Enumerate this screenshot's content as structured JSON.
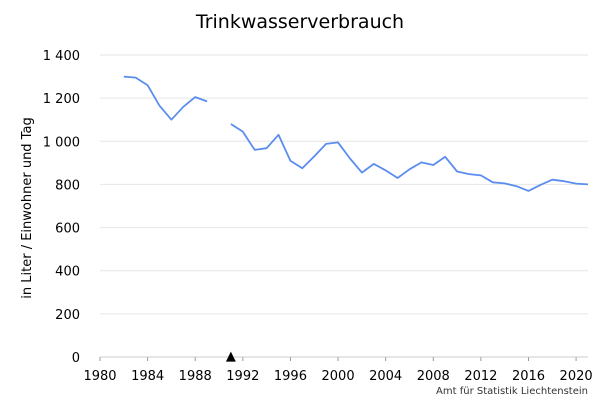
{
  "chart_data": {
    "type": "line",
    "title": "Trinkwasserverbrauch",
    "xlabel": "",
    "ylabel": "in Liter / Einwohner und Tag",
    "source": "Amt für Statistik Liechtenstein",
    "xlim": [
      1980,
      2021
    ],
    "ylim": [
      0,
      1400
    ],
    "xticks": [
      1980,
      1984,
      1988,
      1992,
      1996,
      2000,
      2004,
      2008,
      2012,
      2016,
      2020
    ],
    "yticks": [
      0,
      200,
      400,
      600,
      800,
      1000,
      1200,
      1400
    ],
    "ytick_labels": [
      "0",
      "200",
      "400",
      "600",
      "800",
      "1 000",
      "1 200",
      "1 400"
    ],
    "grid": true,
    "line_color": "#5b8def",
    "marker": {
      "year": 1991,
      "symbol": "▲"
    },
    "series": [
      {
        "points": [
          [
            1982,
            1300
          ],
          [
            1983,
            1295
          ],
          [
            1984,
            1260
          ],
          [
            1985,
            1165
          ],
          [
            1986,
            1100
          ],
          [
            1987,
            1160
          ],
          [
            1988,
            1205
          ],
          [
            1989,
            1185
          ],
          null,
          [
            1991,
            1080
          ],
          [
            1992,
            1045
          ],
          [
            1993,
            960
          ],
          [
            1994,
            968
          ],
          [
            1995,
            1030
          ],
          [
            1996,
            910
          ],
          [
            1997,
            875
          ],
          [
            1998,
            930
          ],
          [
            1999,
            988
          ],
          [
            2000,
            995
          ],
          [
            2001,
            920
          ],
          [
            2002,
            855
          ],
          [
            2003,
            895
          ],
          [
            2004,
            865
          ],
          [
            2005,
            830
          ],
          [
            2006,
            870
          ],
          [
            2007,
            902
          ],
          [
            2008,
            890
          ],
          [
            2009,
            928
          ],
          [
            2010,
            860
          ],
          [
            2011,
            848
          ],
          [
            2012,
            842
          ],
          [
            2013,
            810
          ],
          [
            2014,
            805
          ],
          [
            2015,
            792
          ],
          [
            2016,
            770
          ],
          [
            2017,
            798
          ],
          [
            2018,
            822
          ],
          [
            2019,
            815
          ],
          [
            2020,
            804
          ],
          [
            2021,
            800
          ]
        ]
      }
    ]
  }
}
